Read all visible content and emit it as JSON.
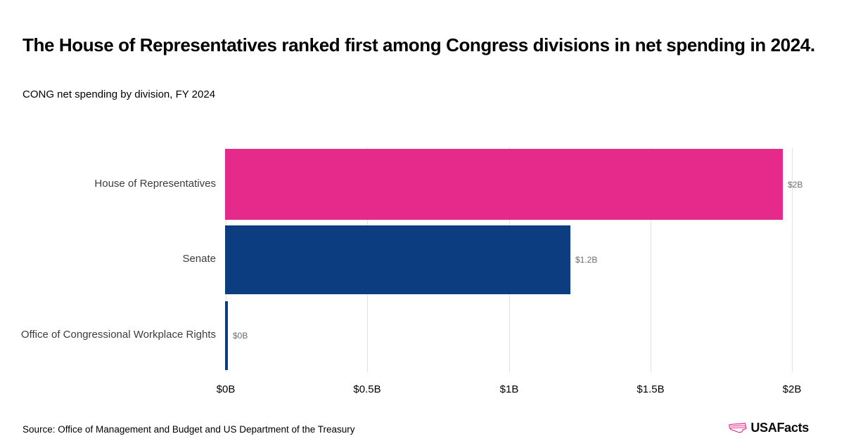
{
  "page": {
    "title": "The House of Representatives ranked first among Congress divisions in net spending in 2024.",
    "subtitle": "CONG net spending by division, FY 2024",
    "source": "Source: Office of Management and Budget and US Department of the Treasury",
    "brand": "USAFacts"
  },
  "colors": {
    "accent_pink": "#e62a8c",
    "navy": "#0b3d80",
    "gridline": "#e2e2e2",
    "value_label_gray": "#6d6d6d"
  },
  "chart_data": {
    "type": "bar",
    "orientation": "horizontal",
    "title": "The House of Representatives ranked first among Congress divisions in net spending in 2024.",
    "subtitle": "CONG net spending by division, FY 2024",
    "categories": [
      "House of Representatives",
      "Senate",
      "Office of Congressional Workplace Rights"
    ],
    "values_billions": [
      1.97,
      1.22,
      0.01
    ],
    "value_labels": [
      "$2B",
      "$1.2B",
      "$0B"
    ],
    "bar_colors": [
      "#e62a8c",
      "#0b3d80",
      "#0b3d80"
    ],
    "x_ticks": [
      {
        "value": 0,
        "label": "$0B"
      },
      {
        "value": 0.5,
        "label": "$0.5B"
      },
      {
        "value": 1,
        "label": "$1B"
      },
      {
        "value": 1.5,
        "label": "$1.5B"
      },
      {
        "value": 2,
        "label": "$2B"
      }
    ],
    "xlim": [
      0,
      2.06
    ],
    "xlabel": "",
    "ylabel": "",
    "grid": "vertical",
    "legend": "none",
    "unit": "billions USD"
  }
}
